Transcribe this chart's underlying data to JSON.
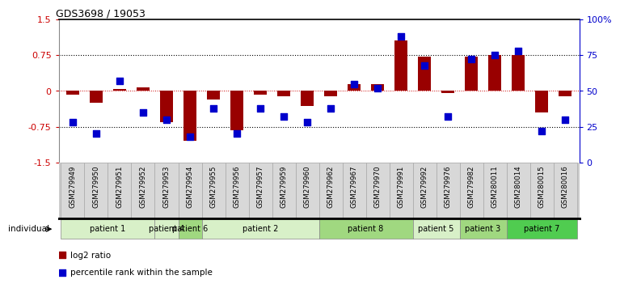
{
  "title": "GDS3698 / 19053",
  "samples": [
    "GSM279949",
    "GSM279950",
    "GSM279951",
    "GSM279952",
    "GSM279953",
    "GSM279954",
    "GSM279955",
    "GSM279956",
    "GSM279957",
    "GSM279959",
    "GSM279960",
    "GSM279962",
    "GSM279967",
    "GSM279970",
    "GSM279991",
    "GSM279992",
    "GSM279976",
    "GSM279982",
    "GSM280011",
    "GSM280014",
    "GSM280015",
    "GSM280016"
  ],
  "log2_ratio": [
    -0.08,
    -0.25,
    0.04,
    0.07,
    -0.65,
    -1.05,
    -0.18,
    -0.82,
    -0.08,
    -0.12,
    -0.32,
    -0.12,
    0.15,
    0.15,
    1.05,
    0.72,
    -0.05,
    0.72,
    0.75,
    0.75,
    -0.45,
    -0.12
  ],
  "percentile_rank": [
    28,
    20,
    57,
    35,
    30,
    18,
    38,
    20,
    38,
    32,
    28,
    38,
    55,
    52,
    88,
    68,
    32,
    72,
    75,
    78,
    22,
    30
  ],
  "patients": [
    {
      "label": "patient 1",
      "start": 0,
      "end": 4,
      "color": "#d8f0c8"
    },
    {
      "label": "patient 4",
      "start": 4,
      "end": 5,
      "color": "#d8f0c8"
    },
    {
      "label": "patient 6",
      "start": 5,
      "end": 6,
      "color": "#a0d880"
    },
    {
      "label": "patient 2",
      "start": 6,
      "end": 11,
      "color": "#d8f0c8"
    },
    {
      "label": "patient 8",
      "start": 11,
      "end": 15,
      "color": "#a0d880"
    },
    {
      "label": "patient 5",
      "start": 15,
      "end": 17,
      "color": "#d8f0c8"
    },
    {
      "label": "patient 3",
      "start": 17,
      "end": 19,
      "color": "#a0d880"
    },
    {
      "label": "patient 7",
      "start": 19,
      "end": 22,
      "color": "#50cc50"
    }
  ],
  "ylim_left": [
    -1.5,
    1.5
  ],
  "ylim_right": [
    0,
    100
  ],
  "yticks_left": [
    -1.5,
    -0.75,
    0,
    0.75,
    1.5
  ],
  "yticks_right": [
    0,
    25,
    50,
    75,
    100
  ],
  "ytick_labels_right": [
    "0",
    "25",
    "50",
    "75",
    "100%"
  ],
  "hlines": [
    0.75,
    -0.75
  ],
  "bar_color": "#990000",
  "dot_color": "#0000cc",
  "bar_width": 0.55,
  "dot_size": 28,
  "background_color": "#ffffff",
  "label_individual": "individual",
  "legend_log2": "log2 ratio",
  "legend_pct": "percentile rank within the sample"
}
